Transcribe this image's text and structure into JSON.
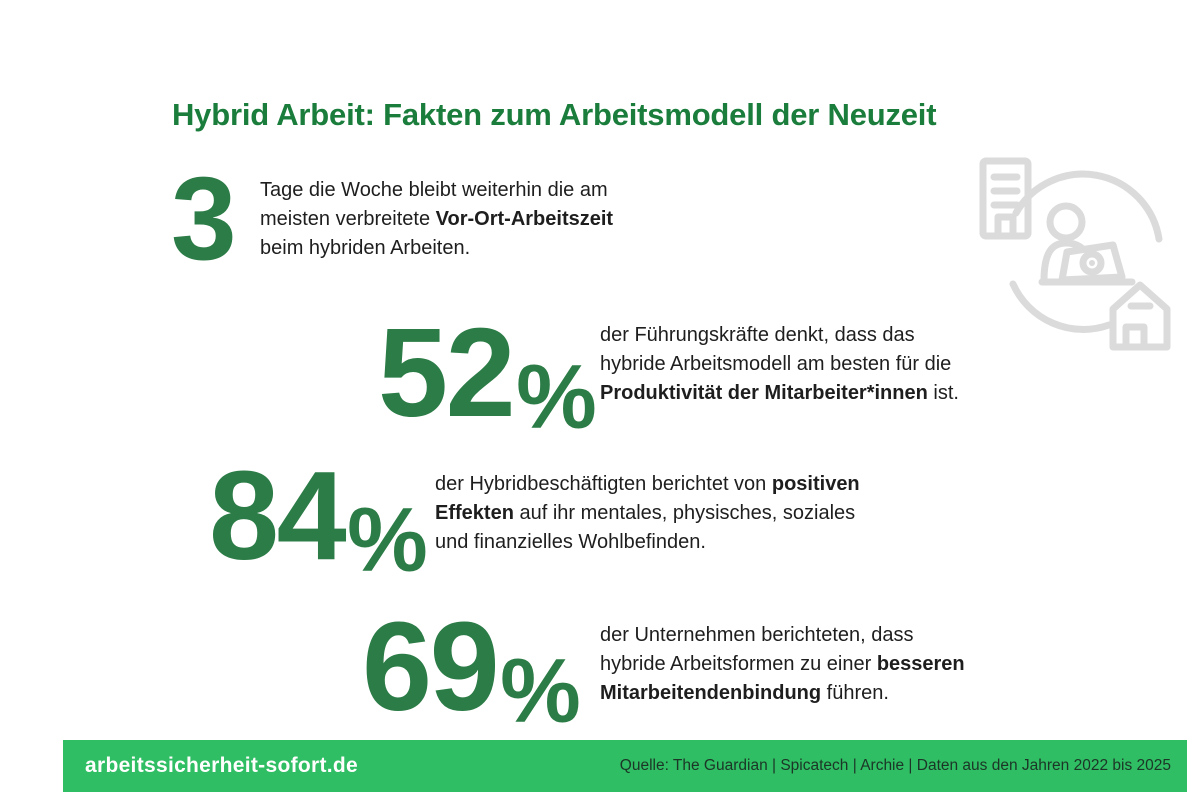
{
  "title": "Hybrid Arbeit: Fakten zum Arbeitsmodell der Neuzeit",
  "stats": [
    {
      "number": "3",
      "suffix": "",
      "lines": [
        [
          {
            "t": "Tage die Woche bleibt weiterhin die am"
          }
        ],
        [
          {
            "t": "meisten verbreitete "
          },
          {
            "t": "Vor-Ort-Arbeitszeit",
            "b": true
          }
        ],
        [
          {
            "t": "beim hybriden Arbeiten."
          }
        ]
      ]
    },
    {
      "number": "52",
      "suffix": "%",
      "lines": [
        [
          {
            "t": "der Führungskräfte denkt, dass das"
          }
        ],
        [
          {
            "t": "hybride Arbeitsmodell am besten für die"
          }
        ],
        [
          {
            "t": "Produktivität der Mitarbeiter*innen",
            "b": true
          },
          {
            "t": " ist."
          }
        ]
      ]
    },
    {
      "number": "84",
      "suffix": "%",
      "lines": [
        [
          {
            "t": "der Hybridbeschäftigten berichtet von "
          },
          {
            "t": "positiven",
            "b": true
          }
        ],
        [
          {
            "t": "Effekten",
            "b": true
          },
          {
            "t": " auf ihr mentales, physisches, soziales"
          }
        ],
        [
          {
            "t": "und finanzielles Wohlbefinden."
          }
        ]
      ]
    },
    {
      "number": "69",
      "suffix": "%",
      "lines": [
        [
          {
            "t": "der Unternehmen berichteten, dass"
          }
        ],
        [
          {
            "t": "hybride Arbeitsformen zu einer "
          },
          {
            "t": "besseren",
            "b": true
          }
        ],
        [
          {
            "t": "Mitarbeitendenbindung",
            "b": true
          },
          {
            "t": " führen."
          }
        ]
      ]
    }
  ],
  "footer": {
    "site": "arbeitssicherheit-sofort.de",
    "source": "Quelle: The Guardian | Spicatech | Archie | Daten aus den Jahren 2022 bis 2025"
  },
  "icons": {
    "hero": "hybrid-work-cycle-icon",
    "parts": [
      "office-building-icon",
      "cycle-arrows-icon",
      "person-laptop-icon",
      "house-icon"
    ]
  },
  "colors": {
    "title_green": "#1a7d3c",
    "number_green": "#2b7c46",
    "footer_bar_green": "#2fbe63",
    "body_text": "#1e1e1e",
    "footer_source_text": "#1c3527",
    "icon_gray": "#dbdbdb",
    "background": "#ffffff"
  },
  "chart_data": {
    "type": "table",
    "title": "Hybrid Arbeit: Fakten zum Arbeitsmodell der Neuzeit",
    "rows": [
      {
        "value": 3,
        "unit": "Tage",
        "statement": "Tage die Woche bleibt weiterhin die am meisten verbreitete Vor-Ort-Arbeitszeit beim hybriden Arbeiten."
      },
      {
        "value": 52,
        "unit": "%",
        "statement": "der Führungskräfte denkt, dass das hybride Arbeitsmodell am besten für die Produktivität der Mitarbeiter*innen ist."
      },
      {
        "value": 84,
        "unit": "%",
        "statement": "der Hybridbeschäftigten berichtet von positiven Effekten auf ihr mentales, physisches, soziales und finanzielles Wohlbefinden."
      },
      {
        "value": 69,
        "unit": "%",
        "statement": "der Unternehmen berichteten, dass hybride Arbeitsformen zu einer besseren Mitarbeitendenbindung führen."
      }
    ],
    "source": "Quelle: The Guardian | Spicatech | Archie | Daten aus den Jahren 2022 bis 2025"
  }
}
